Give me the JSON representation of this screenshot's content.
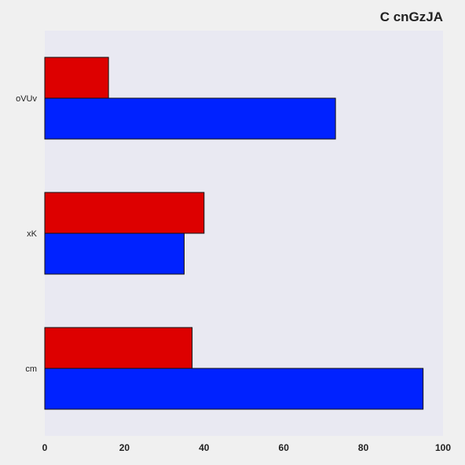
{
  "chart_data": {
    "type": "bar",
    "orientation": "horizontal",
    "title": "C cnGzJA",
    "xlabel": "",
    "ylabel": "",
    "categories": [
      "oVUv",
      "xK",
      "cm"
    ],
    "series": [
      {
        "color": "#dd0000",
        "values": [
          16,
          40,
          37
        ]
      },
      {
        "color": "#0022ff",
        "values": [
          73,
          35,
          95
        ]
      }
    ],
    "xlim": [
      0,
      100
    ],
    "xticks": [
      0,
      20,
      40,
      60,
      80,
      100
    ],
    "grid": false,
    "legend": "none",
    "plot_background": "#e9e9f2"
  }
}
